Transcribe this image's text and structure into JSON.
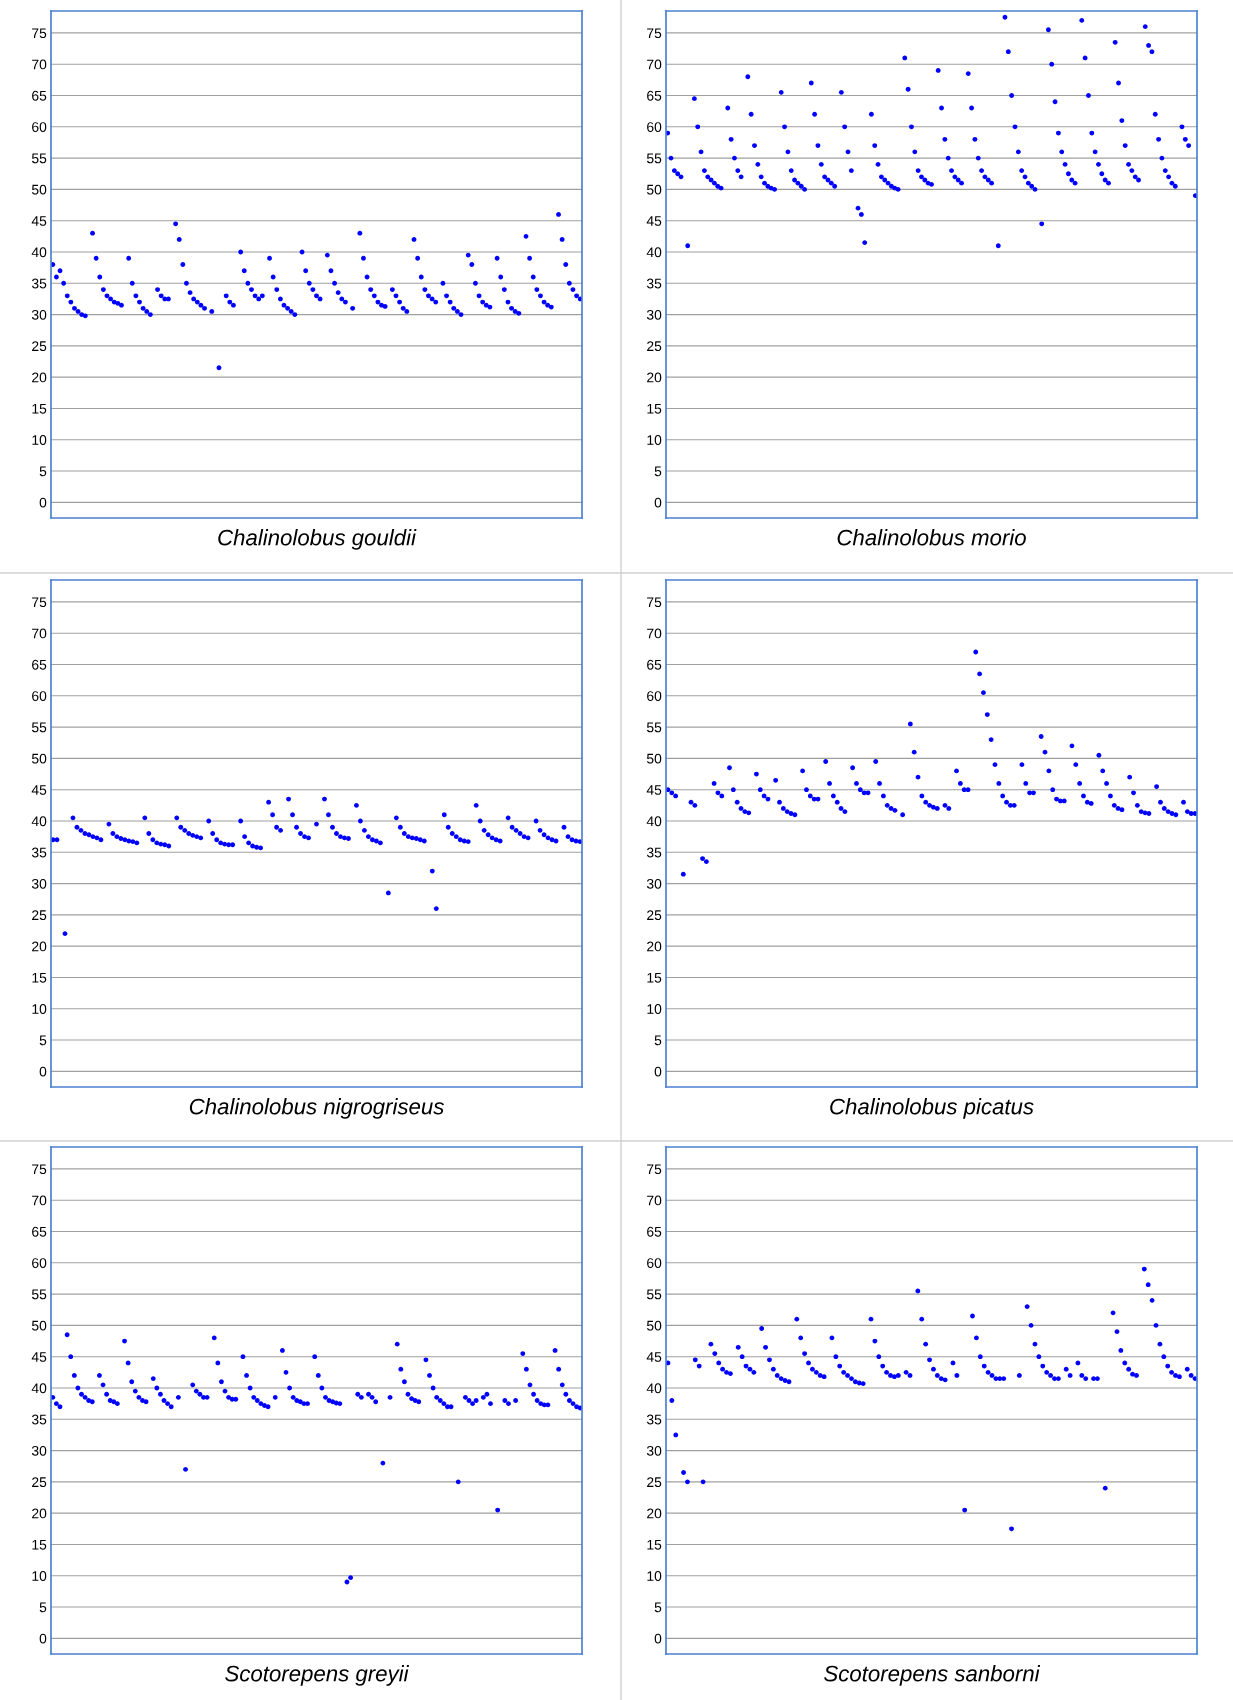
{
  "chart_data": [
    {
      "type": "scatter",
      "xlabel": "Chalinolobus gouldii",
      "ylim": [
        -2.5,
        78.5
      ],
      "yticks": [
        0,
        5,
        10,
        15,
        20,
        25,
        30,
        35,
        40,
        45,
        50,
        55,
        60,
        65,
        70,
        75
      ],
      "grid": "y",
      "marker": "circle",
      "tick_labels": "y",
      "categories": [
        null,
        null,
        null,
        null,
        null,
        null,
        null,
        null,
        null,
        null,
        null,
        null,
        null,
        null,
        null,
        null,
        null,
        null,
        null,
        null,
        null,
        null,
        null,
        null,
        null,
        null,
        null,
        null,
        null,
        null,
        null,
        null,
        null,
        null,
        null,
        null,
        null,
        null,
        null,
        null,
        null,
        null,
        null,
        null,
        null,
        null,
        null,
        null,
        null,
        null,
        null,
        null,
        null,
        null,
        null,
        null,
        null,
        null,
        null,
        null,
        null,
        null,
        null,
        null,
        null,
        null,
        null,
        null,
        null,
        null,
        null,
        null,
        null,
        null,
        null,
        null,
        null,
        null,
        null,
        null,
        null,
        null,
        null,
        null,
        null,
        null,
        null,
        null,
        null,
        null,
        null,
        null,
        null,
        null,
        null,
        null,
        null,
        null,
        null,
        null,
        null,
        null,
        null,
        null,
        null,
        null,
        null,
        null,
        null,
        null,
        null,
        null,
        null,
        null,
        null,
        null,
        null,
        null,
        null,
        null,
        null,
        null,
        null,
        null,
        null,
        null,
        null,
        null,
        null,
        null,
        null,
        null,
        null,
        null,
        null,
        null,
        null,
        null,
        null,
        null,
        null,
        null,
        null,
        null,
        null,
        null,
        null
      ],
      "series": [
        {
          "color": "#0000ff",
          "values": [
            38,
            36,
            37,
            35,
            33,
            32,
            31,
            30.5,
            30,
            29.8,
            null,
            43,
            39,
            36,
            34,
            33,
            32.5,
            32,
            31.8,
            31.5,
            null,
            39,
            35,
            33,
            32,
            31,
            30.5,
            30,
            null,
            34,
            33,
            32.5,
            32.5,
            null,
            44.5,
            42,
            38,
            35,
            33.5,
            32.5,
            32,
            31.5,
            31,
            null,
            30.5,
            null,
            21.5,
            null,
            33,
            32,
            31.5,
            null,
            40,
            37,
            35,
            34,
            33,
            32.5,
            33,
            null,
            39,
            36,
            34,
            32.5,
            31.5,
            31,
            30.5,
            30,
            null,
            40,
            37,
            35,
            34,
            33,
            32.5,
            null,
            39.5,
            37,
            35,
            33.5,
            32.5,
            32,
            null,
            31,
            null,
            43,
            39,
            36,
            34,
            33,
            32,
            31.5,
            31.3,
            null,
            34,
            33,
            32,
            31,
            30.5,
            null,
            42,
            39,
            36,
            34,
            33,
            32.5,
            32,
            null,
            35,
            33,
            32,
            31,
            30.5,
            30,
            null,
            39.5,
            38,
            35,
            33,
            32,
            31.5,
            31.2,
            null,
            39,
            36,
            34,
            32,
            31,
            30.5,
            30.2,
            null,
            42.5,
            39,
            36,
            34,
            33,
            32,
            31.5,
            31.2,
            null,
            46,
            42,
            38,
            35,
            34,
            33,
            32.5
          ]
        }
      ]
    },
    {
      "type": "scatter",
      "xlabel": "Chalinolobus morio",
      "ylim": [
        -2.5,
        78.5
      ],
      "yticks": [
        0,
        5,
        10,
        15,
        20,
        25,
        30,
        35,
        40,
        45,
        50,
        55,
        60,
        65,
        70,
        75
      ],
      "grid": "y",
      "marker": "circle",
      "tick_labels": "y",
      "categories": [
        null,
        null,
        null,
        null,
        null,
        null,
        null,
        null,
        null,
        null,
        null,
        null,
        null,
        null,
        null,
        null,
        null,
        null,
        null,
        null,
        null,
        null,
        null,
        null,
        null,
        null,
        null,
        null,
        null,
        null,
        null,
        null,
        null,
        null,
        null,
        null,
        null,
        null,
        null,
        null,
        null,
        null,
        null,
        null,
        null,
        null,
        null,
        null,
        null,
        null,
        null,
        null,
        null,
        null,
        null,
        null,
        null,
        null,
        null,
        null,
        null,
        null,
        null,
        null,
        null,
        null,
        null,
        null,
        null,
        null,
        null,
        null,
        null,
        null,
        null,
        null,
        null,
        null,
        null,
        null,
        null,
        null,
        null,
        null,
        null,
        null,
        null,
        null,
        null,
        null,
        null,
        null,
        null,
        null,
        null,
        null,
        null,
        null,
        null,
        null,
        null,
        null,
        null,
        null,
        null,
        null,
        null,
        null,
        null,
        null,
        null,
        null,
        null,
        null,
        null,
        null,
        null,
        null,
        null,
        null,
        null,
        null,
        null,
        null,
        null,
        null,
        null,
        null,
        null,
        null,
        null,
        null,
        null,
        null,
        null,
        null,
        null,
        null,
        null,
        null,
        null,
        null,
        null,
        null,
        null,
        null,
        null,
        null,
        null,
        null,
        null,
        null,
        null,
        null,
        null,
        null,
        null,
        null,
        null
      ],
      "series": [
        {
          "color": "#0000ff",
          "values": [
            59,
            55,
            53,
            52.5,
            52,
            null,
            41,
            null,
            64.5,
            60,
            56,
            53,
            52,
            51.5,
            51,
            50.5,
            50.2,
            null,
            63,
            58,
            55,
            53,
            52,
            null,
            68,
            62,
            57,
            54,
            52,
            51,
            50.5,
            50.2,
            50,
            null,
            65.5,
            60,
            56,
            53,
            51.5,
            51,
            50.5,
            50,
            null,
            67,
            62,
            57,
            54,
            52,
            51.5,
            51,
            50.5,
            null,
            65.5,
            60,
            56,
            53,
            null,
            47,
            46,
            41.5,
            null,
            62,
            57,
            54,
            52,
            51.5,
            51,
            50.5,
            50.2,
            50,
            null,
            71,
            66,
            60,
            56,
            53,
            52,
            51.5,
            51,
            50.8,
            null,
            69,
            63,
            58,
            55,
            53,
            52,
            51.5,
            51,
            null,
            68.5,
            63,
            58,
            55,
            53,
            52,
            51.5,
            51,
            null,
            41,
            null,
            77.5,
            72,
            65,
            60,
            56,
            53,
            52,
            51,
            50.5,
            50,
            null,
            44.5,
            null,
            75.5,
            70,
            64,
            59,
            56,
            54,
            52.5,
            51.5,
            51,
            null,
            77,
            71,
            65,
            59,
            56,
            54,
            52.5,
            51.5,
            51,
            null,
            73.5,
            67,
            61,
            57,
            54,
            53,
            52,
            51.5,
            null,
            76,
            73,
            72,
            62,
            58,
            55,
            53,
            52,
            51,
            50.5,
            null,
            60,
            58,
            57,
            null,
            49
          ]
        }
      ]
    },
    {
      "type": "scatter",
      "xlabel": "Chalinolobus nigrogriseus",
      "ylim": [
        -2.5,
        78.5
      ],
      "yticks": [
        0,
        5,
        10,
        15,
        20,
        25,
        30,
        35,
        40,
        45,
        50,
        55,
        60,
        65,
        70,
        75
      ],
      "grid": "y",
      "marker": "circle",
      "tick_labels": "y",
      "categories": [
        null,
        null,
        null,
        null,
        null,
        null,
        null,
        null,
        null,
        null,
        null,
        null,
        null,
        null,
        null,
        null,
        null,
        null,
        null,
        null,
        null,
        null,
        null,
        null,
        null,
        null,
        null,
        null,
        null,
        null,
        null,
        null,
        null,
        null,
        null,
        null,
        null,
        null,
        null,
        null,
        null,
        null,
        null,
        null,
        null,
        null,
        null,
        null,
        null,
        null,
        null,
        null,
        null,
        null,
        null,
        null,
        null,
        null,
        null,
        null,
        null,
        null,
        null,
        null,
        null,
        null,
        null,
        null,
        null,
        null,
        null,
        null,
        null,
        null,
        null,
        null,
        null,
        null,
        null,
        null,
        null,
        null,
        null,
        null,
        null,
        null,
        null,
        null,
        null,
        null,
        null,
        null,
        null,
        null,
        null,
        null,
        null,
        null,
        null,
        null,
        null,
        null,
        null,
        null,
        null,
        null,
        null,
        null,
        null,
        null,
        null,
        null,
        null,
        null,
        null,
        null,
        null,
        null,
        null,
        null,
        null,
        null,
        null,
        null,
        null,
        null,
        null,
        null,
        null,
        null,
        null,
        null,
        null
      ],
      "series": [
        {
          "color": "#0000ff",
          "values": [
            37,
            37,
            null,
            22,
            null,
            40.5,
            39,
            38.5,
            38,
            37.8,
            37.5,
            37.3,
            37,
            null,
            39.5,
            38,
            37.5,
            37.2,
            37,
            36.8,
            36.7,
            36.5,
            null,
            40.5,
            38,
            37,
            36.5,
            36.3,
            36.2,
            36,
            null,
            40.5,
            39,
            38.5,
            38,
            37.7,
            37.5,
            37.3,
            null,
            40,
            38,
            37,
            36.5,
            36.3,
            36.2,
            36.2,
            null,
            40,
            37.5,
            36.5,
            36,
            35.8,
            35.7,
            null,
            43,
            41,
            39,
            38.5,
            null,
            43.5,
            41,
            39,
            38,
            37.5,
            37.3,
            null,
            39.5,
            null,
            43.5,
            41,
            39,
            38,
            37.5,
            37.3,
            37.2,
            null,
            42.5,
            40,
            38.5,
            37.5,
            37,
            36.8,
            36.5,
            null,
            28.5,
            null,
            40.5,
            39,
            38,
            37.5,
            37.3,
            37.2,
            37,
            36.8,
            null,
            32,
            26,
            null,
            41,
            39,
            38,
            37.5,
            37,
            36.8,
            36.7,
            null,
            42.5,
            40,
            38.5,
            37.8,
            37.3,
            37,
            36.8,
            null,
            40.5,
            39,
            38.5,
            38,
            37.5,
            37.3,
            null,
            40,
            38.5,
            37.8,
            37.3,
            37,
            36.8,
            null,
            39,
            37.5,
            37,
            36.8,
            36.7
          ]
        }
      ]
    },
    {
      "type": "scatter",
      "xlabel": "Chalinolobus picatus",
      "ylim": [
        -2.5,
        78.5
      ],
      "yticks": [
        0,
        5,
        10,
        15,
        20,
        25,
        30,
        35,
        40,
        45,
        50,
        55,
        60,
        65,
        70,
        75
      ],
      "grid": "y",
      "marker": "circle",
      "tick_labels": "y",
      "categories": [
        null,
        null,
        null,
        null,
        null,
        null,
        null,
        null,
        null,
        null,
        null,
        null,
        null,
        null,
        null,
        null,
        null,
        null,
        null,
        null,
        null,
        null,
        null,
        null,
        null,
        null,
        null,
        null,
        null,
        null,
        null,
        null,
        null,
        null,
        null,
        null,
        null,
        null,
        null,
        null,
        null,
        null,
        null,
        null,
        null,
        null,
        null,
        null,
        null,
        null,
        null,
        null,
        null,
        null,
        null,
        null,
        null,
        null,
        null,
        null,
        null,
        null,
        null,
        null,
        null,
        null,
        null,
        null,
        null,
        null,
        null,
        null,
        null,
        null,
        null,
        null,
        null,
        null,
        null,
        null,
        null,
        null,
        null,
        null,
        null,
        null,
        null,
        null,
        null,
        null,
        null,
        null,
        null,
        null,
        null,
        null,
        null,
        null,
        null,
        null,
        null,
        null,
        null,
        null,
        null,
        null,
        null,
        null,
        null,
        null,
        null,
        null,
        null,
        null,
        null,
        null,
        null,
        null,
        null,
        null,
        null,
        null,
        null,
        null,
        null,
        null,
        null,
        null,
        null,
        null,
        null,
        null,
        null,
        null,
        null,
        null,
        null,
        null
      ],
      "series": [
        {
          "color": "#0000ff",
          "values": [
            45,
            44.5,
            44,
            null,
            31.5,
            null,
            43,
            42.5,
            null,
            34,
            33.5,
            null,
            46,
            44.5,
            44,
            null,
            48.5,
            45,
            43,
            42,
            41.5,
            41.3,
            null,
            47.5,
            45,
            44,
            43.5,
            null,
            46.5,
            43,
            42,
            41.5,
            41.2,
            41,
            null,
            48,
            45,
            44,
            43.5,
            43.5,
            null,
            49.5,
            46,
            44,
            43,
            42,
            41.5,
            null,
            48.5,
            46,
            45,
            44.5,
            44.5,
            null,
            49.5,
            46,
            44,
            42.5,
            42,
            41.7,
            null,
            41,
            null,
            55.5,
            51,
            47,
            44,
            43,
            42.5,
            42.2,
            42,
            null,
            42.5,
            42,
            null,
            48,
            46,
            45,
            45,
            null,
            67,
            63.5,
            60.5,
            57,
            53,
            49,
            46,
            44,
            43,
            42.5,
            42.5,
            null,
            49,
            46,
            44.5,
            44.5,
            null,
            53.5,
            51,
            48,
            45,
            43.5,
            43.2,
            43.2,
            null,
            52,
            49,
            46,
            44,
            43,
            42.8,
            null,
            50.5,
            48,
            46,
            44,
            42.5,
            42,
            41.8,
            null,
            47,
            44.5,
            42.5,
            41.5,
            41.3,
            41.2,
            null,
            45.5,
            43,
            42,
            41.5,
            41.2,
            41,
            null,
            43,
            41.5,
            41.2,
            41.2
          ]
        }
      ]
    },
    {
      "type": "scatter",
      "xlabel": "Scotorepens greyii",
      "ylim": [
        -2.5,
        78.5
      ],
      "yticks": [
        0,
        5,
        10,
        15,
        20,
        25,
        30,
        35,
        40,
        45,
        50,
        55,
        60,
        65,
        70,
        75
      ],
      "grid": "y",
      "marker": "circle",
      "tick_labels": "y",
      "categories": [
        null,
        null,
        null,
        null,
        null,
        null,
        null,
        null,
        null,
        null,
        null,
        null,
        null,
        null,
        null,
        null,
        null,
        null,
        null,
        null,
        null,
        null,
        null,
        null,
        null,
        null,
        null,
        null,
        null,
        null,
        null,
        null,
        null,
        null,
        null,
        null,
        null,
        null,
        null,
        null,
        null,
        null,
        null,
        null,
        null,
        null,
        null,
        null,
        null,
        null,
        null,
        null,
        null,
        null,
        null,
        null,
        null,
        null,
        null,
        null,
        null,
        null,
        null,
        null,
        null,
        null,
        null,
        null,
        null,
        null,
        null,
        null,
        null,
        null,
        null,
        null,
        null,
        null,
        null,
        null,
        null,
        null,
        null,
        null,
        null,
        null,
        null,
        null,
        null,
        null,
        null,
        null,
        null,
        null,
        null,
        null,
        null,
        null,
        null,
        null,
        null,
        null,
        null,
        null,
        null,
        null,
        null,
        null,
        null,
        null,
        null,
        null,
        null,
        null,
        null,
        null,
        null,
        null,
        null,
        null,
        null,
        null,
        null,
        null,
        null,
        null,
        null,
        null,
        null,
        null,
        null,
        null,
        null,
        null,
        null,
        null,
        null,
        null,
        null,
        null,
        null,
        null,
        null,
        null,
        null,
        null,
        null,
        null
      ],
      "series": [
        {
          "color": "#0000ff",
          "values": [
            38.5,
            37.5,
            37,
            null,
            48.5,
            45,
            42,
            40,
            39,
            38.5,
            38,
            37.8,
            null,
            42,
            40.5,
            39,
            38,
            37.8,
            37.5,
            null,
            47.5,
            44,
            41,
            39.5,
            38.5,
            38,
            37.8,
            null,
            41.5,
            40,
            39,
            38,
            37.5,
            37,
            null,
            38.5,
            null,
            27,
            null,
            40.5,
            39.5,
            39,
            38.5,
            38.5,
            null,
            48,
            44,
            41,
            39.5,
            38.5,
            38.2,
            38.2,
            null,
            45,
            42,
            40,
            38.5,
            38,
            37.5,
            37.2,
            37,
            null,
            38.5,
            null,
            46,
            42.5,
            40,
            38.5,
            38,
            37.8,
            37.5,
            37.5,
            null,
            45,
            42,
            40,
            38.5,
            38,
            37.8,
            37.6,
            37.5,
            null,
            9,
            9.7,
            null,
            39,
            38.5,
            null,
            39,
            38.5,
            37.8,
            null,
            28,
            null,
            38.5,
            null,
            47,
            43,
            41,
            39,
            38.3,
            38,
            37.8,
            null,
            44.5,
            42,
            40,
            38.5,
            38,
            37.5,
            37,
            37,
            null,
            25,
            null,
            38.5,
            38,
            37.5,
            38,
            null,
            38.5,
            39,
            37.5,
            null,
            20.5,
            null,
            38,
            37.5,
            null,
            38,
            null,
            45.5,
            43,
            40.5,
            39,
            38,
            37.5,
            37.3,
            37.3,
            null,
            46,
            43,
            40.5,
            39,
            38,
            37.5,
            37,
            36.8
          ]
        }
      ]
    },
    {
      "type": "scatter",
      "xlabel": "Scotorepens sanborni",
      "ylim": [
        -2.5,
        78.5
      ],
      "yticks": [
        0,
        5,
        10,
        15,
        20,
        25,
        30,
        35,
        40,
        45,
        50,
        55,
        60,
        65,
        70,
        75
      ],
      "grid": "y",
      "marker": "circle",
      "tick_labels": "y",
      "categories": [
        null,
        null,
        null,
        null,
        null,
        null,
        null,
        null,
        null,
        null,
        null,
        null,
        null,
        null,
        null,
        null,
        null,
        null,
        null,
        null,
        null,
        null,
        null,
        null,
        null,
        null,
        null,
        null,
        null,
        null,
        null,
        null,
        null,
        null,
        null,
        null,
        null,
        null,
        null,
        null,
        null,
        null,
        null,
        null,
        null,
        null,
        null,
        null,
        null,
        null,
        null,
        null,
        null,
        null,
        null,
        null,
        null,
        null,
        null,
        null,
        null,
        null,
        null,
        null,
        null,
        null,
        null,
        null,
        null,
        null,
        null,
        null,
        null,
        null,
        null,
        null,
        null,
        null,
        null,
        null,
        null,
        null,
        null,
        null,
        null,
        null,
        null,
        null,
        null,
        null,
        null,
        null,
        null,
        null,
        null,
        null,
        null,
        null,
        null,
        null,
        null,
        null,
        null,
        null,
        null,
        null,
        null,
        null,
        null,
        null,
        null,
        null,
        null,
        null,
        null,
        null,
        null,
        null,
        null,
        null,
        null,
        null,
        null,
        null,
        null,
        null,
        null,
        null,
        null,
        null,
        null,
        null,
        null,
        null,
        null,
        null
      ],
      "series": [
        {
          "color": "#0000ff",
          "values": [
            44,
            38,
            32.5,
            null,
            26.5,
            25,
            null,
            44.5,
            43.5,
            25,
            null,
            47,
            45.5,
            44,
            43,
            42.5,
            42.3,
            null,
            46.5,
            45,
            43.5,
            43,
            42.5,
            null,
            49.5,
            46.5,
            44.5,
            43,
            42,
            41.5,
            41.2,
            41,
            null,
            51,
            48,
            45.5,
            44,
            43,
            42.5,
            42,
            41.8,
            null,
            48,
            45,
            43.5,
            42.5,
            42,
            41.5,
            41,
            40.8,
            40.7,
            null,
            51,
            47.5,
            45,
            43.5,
            42.5,
            42,
            41.8,
            42,
            null,
            42.5,
            42,
            null,
            55.5,
            51,
            47,
            44.5,
            43,
            42,
            41.5,
            41.3,
            null,
            44,
            42,
            null,
            20.5,
            null,
            51.5,
            48,
            45,
            43.5,
            42.5,
            42,
            41.5,
            41.5,
            41.5,
            null,
            17.5,
            null,
            42,
            null,
            53,
            50,
            47,
            45,
            43.5,
            42.5,
            42,
            41.5,
            41.5,
            null,
            43,
            42,
            null,
            44,
            42,
            41.5,
            null,
            41.5,
            41.5,
            null,
            24,
            null,
            52,
            49,
            46,
            44,
            43,
            42.2,
            42,
            null,
            59,
            56.5,
            54,
            50,
            47,
            45,
            43.5,
            42.5,
            42,
            41.8,
            null,
            43,
            42,
            41.5
          ]
        }
      ]
    }
  ]
}
